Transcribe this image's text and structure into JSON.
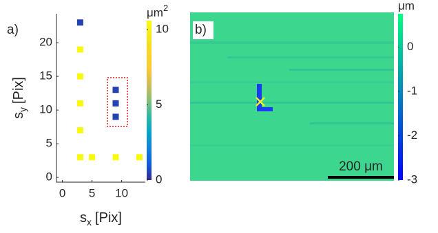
{
  "chart_data": [
    {
      "type": "scatter",
      "panel_label": "a)",
      "xlabel": {
        "base": "s",
        "sub": "x",
        "unit": "[Pix]"
      },
      "ylabel": {
        "base": "s",
        "sub": "y",
        "unit": "[Pix]"
      },
      "x": [
        3,
        3,
        3,
        3,
        3,
        3,
        5,
        9,
        13,
        9,
        9,
        9
      ],
      "y": [
        23,
        19,
        15,
        11,
        7,
        3,
        3,
        3,
        3,
        13,
        11,
        9
      ],
      "values": [
        0.5,
        10.5,
        10.5,
        10.5,
        10.5,
        10.5,
        10.5,
        10.5,
        10.5,
        0.5,
        0.5,
        0.5
      ],
      "xlim": [
        -1,
        14
      ],
      "ylim": [
        -0.7,
        24.3
      ],
      "xticks": [
        0,
        5,
        10
      ],
      "yticks": [
        0,
        5,
        10,
        15,
        20
      ],
      "colormap": "parula",
      "colorbar": {
        "lim": [
          0,
          10.6
        ],
        "ticks": [
          0,
          5,
          10
        ],
        "label": "μm",
        "label_sup": "2"
      }
    },
    {
      "type": "image",
      "panel_label": "b)",
      "colormap": "winter",
      "colorbar": {
        "lim": [
          -3,
          0.75
        ],
        "ticks": [
          0,
          -1,
          -2,
          -3
        ],
        "label": "μm"
      },
      "scalebar": "200 μm"
    }
  ]
}
